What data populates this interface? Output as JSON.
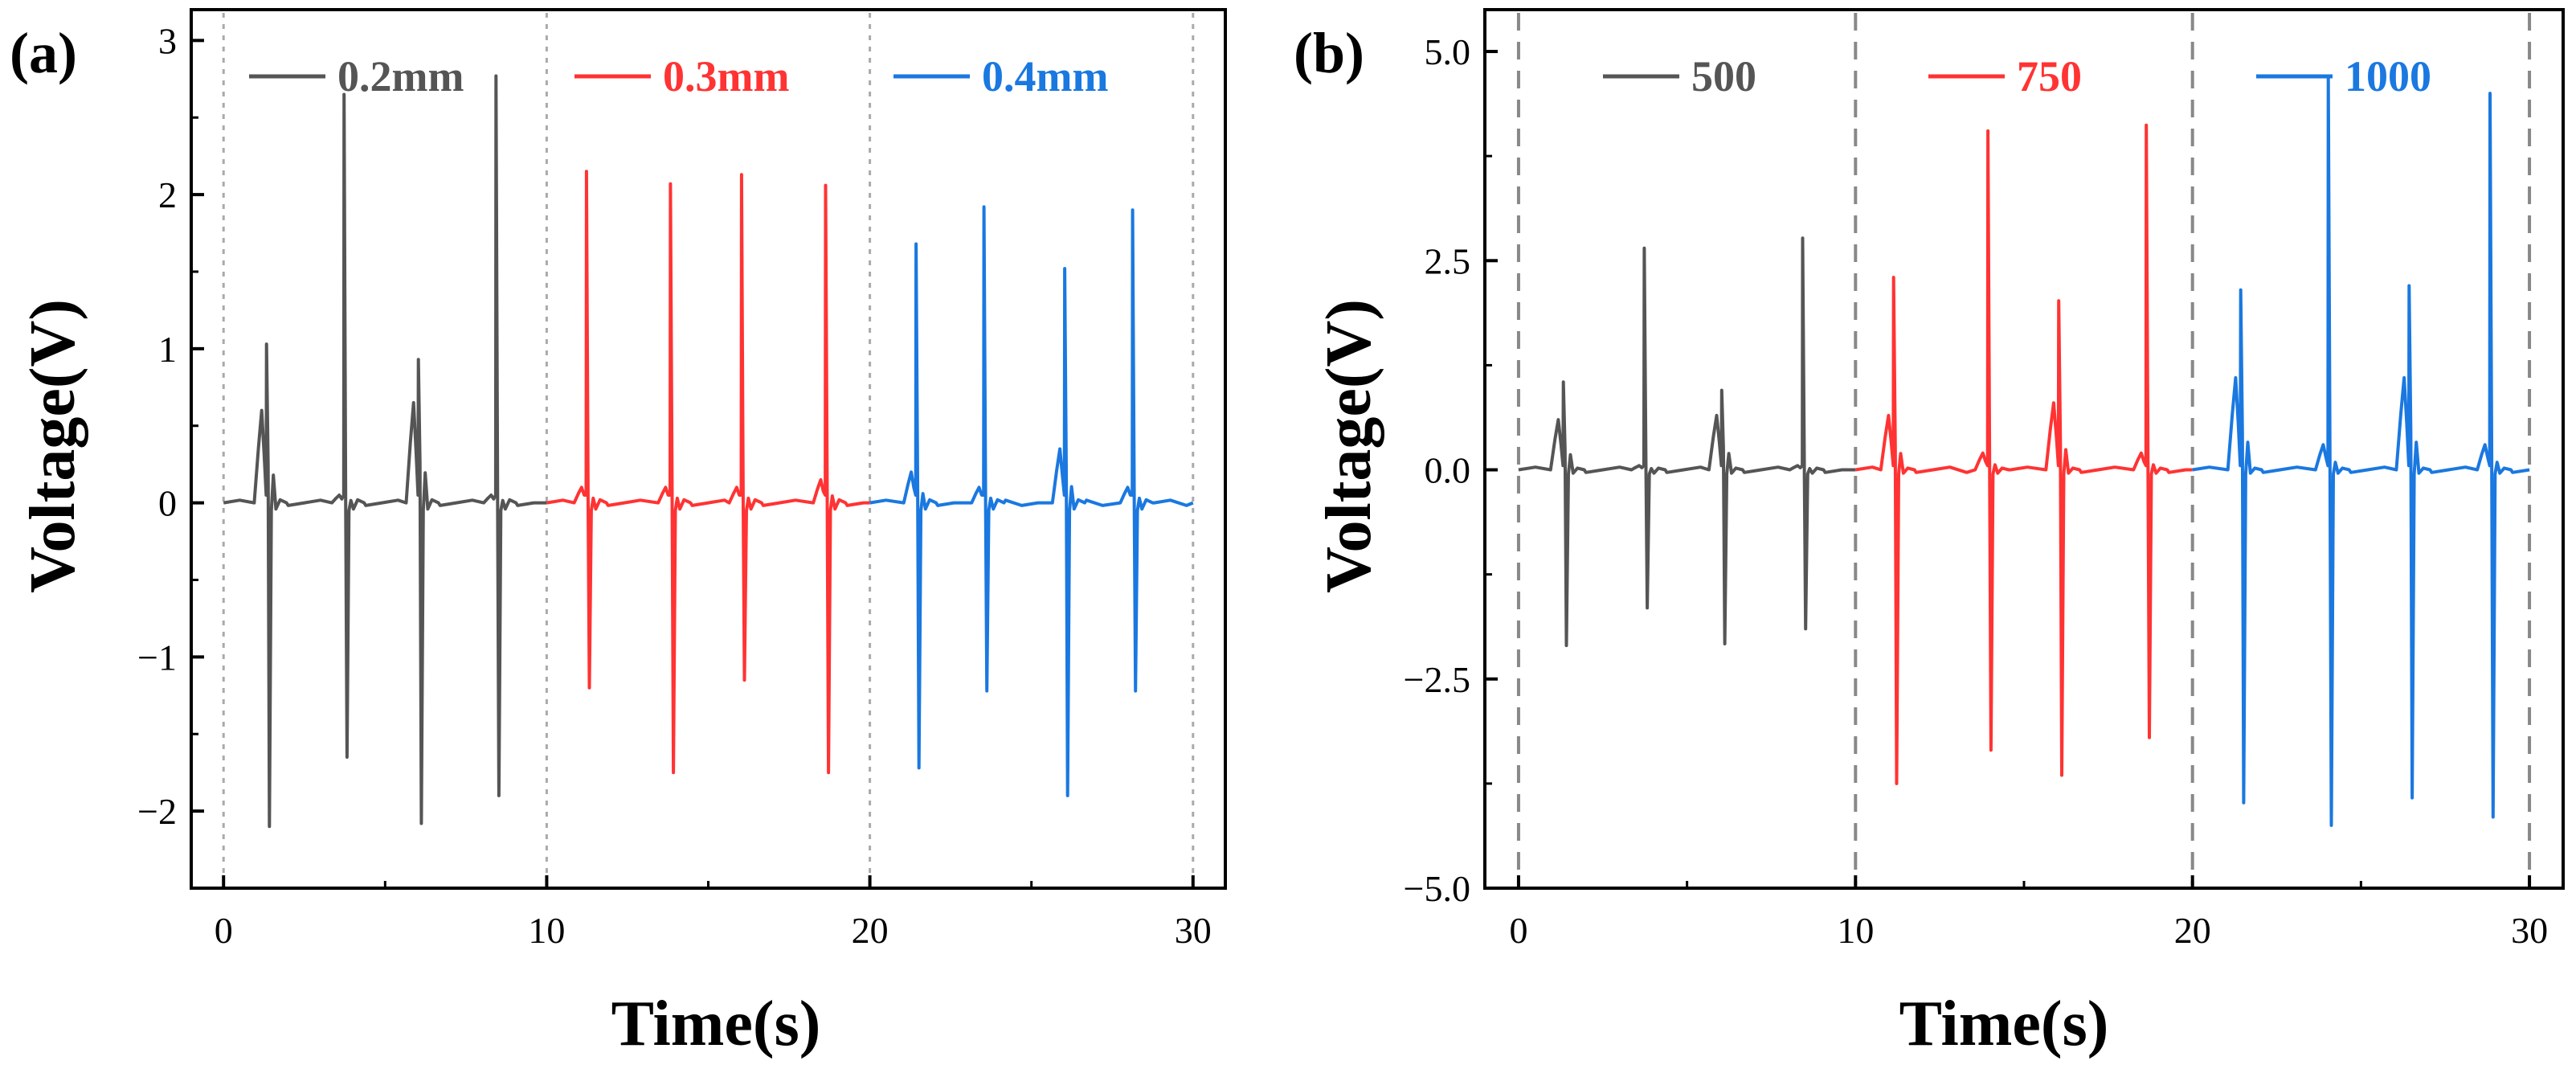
{
  "chart_data": [
    {
      "panel_label": "(a)",
      "type": "line",
      "xlabel": "Time(s)",
      "ylabel": "Voltage(V)",
      "xlim": [
        -1,
        31
      ],
      "ylim": [
        -2.5,
        3.2
      ],
      "xticks": [
        0,
        10,
        20,
        30
      ],
      "xtick_labels": [
        "0",
        "10",
        "20",
        "30"
      ],
      "yticks": [
        -2,
        -1,
        0,
        1,
        2,
        3
      ],
      "ytick_labels": [
        "−2",
        "−1",
        "0",
        "1",
        "2",
        "3"
      ],
      "vlines": [
        0,
        10,
        20,
        30
      ],
      "legend_position": "top",
      "series": [
        {
          "name": "0.2mm",
          "color": "#555555",
          "x_range": [
            0,
            10
          ],
          "pulses": [
            {
              "t": 1.4,
              "max": 1.03,
              "min": -2.1,
              "shoulder": 0.6
            },
            {
              "t": 3.8,
              "max": 2.65,
              "min": -1.65,
              "shoulder": 0.05
            },
            {
              "t": 6.1,
              "max": 0.93,
              "min": -2.08,
              "shoulder": 0.65
            },
            {
              "t": 8.5,
              "max": 2.77,
              "min": -1.9,
              "shoulder": 0.05
            }
          ]
        },
        {
          "name": "0.3mm",
          "color": "#ff3333",
          "x_range": [
            10,
            20
          ],
          "pulses": [
            {
              "t": 11.3,
              "max": 2.15,
              "min": -1.2,
              "shoulder": 0.1
            },
            {
              "t": 13.9,
              "max": 2.07,
              "min": -1.75,
              "shoulder": 0.1
            },
            {
              "t": 16.1,
              "max": 2.13,
              "min": -1.15,
              "shoulder": 0.1
            },
            {
              "t": 18.7,
              "max": 2.06,
              "min": -1.75,
              "shoulder": 0.15
            }
          ]
        },
        {
          "name": "0.4mm",
          "color": "#1a78e0",
          "x_range": [
            20,
            30
          ],
          "pulses": [
            {
              "t": 21.5,
              "max": 1.68,
              "min": -1.72,
              "shoulder": 0.2
            },
            {
              "t": 23.6,
              "max": 1.92,
              "min": -1.22,
              "shoulder": 0.1
            },
            {
              "t": 26.1,
              "max": 1.52,
              "min": -1.9,
              "shoulder": 0.35
            },
            {
              "t": 28.2,
              "max": 1.9,
              "min": -1.22,
              "shoulder": 0.1
            }
          ]
        }
      ]
    },
    {
      "panel_label": "(b)",
      "type": "line",
      "xlabel": "Time(s)",
      "ylabel": "Voltage(V)",
      "xlim": [
        -1,
        31
      ],
      "ylim": [
        -5.0,
        5.5
      ],
      "xticks": [
        0,
        10,
        20,
        30
      ],
      "xtick_labels": [
        "0",
        "10",
        "20",
        "30"
      ],
      "yticks": [
        -5.0,
        -2.5,
        0.0,
        2.5,
        5.0
      ],
      "ytick_labels": [
        "−5.0",
        "−2.5",
        "0.0",
        "2.5",
        "5.0"
      ],
      "vlines": [
        0,
        10,
        20,
        30
      ],
      "legend_position": "top",
      "series": [
        {
          "name": "500",
          "color": "#555555",
          "x_range": [
            0,
            10
          ],
          "pulses": [
            {
              "t": 1.4,
              "max": 1.05,
              "min": -2.1,
              "shoulder": 0.6
            },
            {
              "t": 3.8,
              "max": 2.65,
              "min": -1.65,
              "shoulder": 0.05
            },
            {
              "t": 6.1,
              "max": 0.95,
              "min": -2.08,
              "shoulder": 0.65
            },
            {
              "t": 8.5,
              "max": 2.77,
              "min": -1.9,
              "shoulder": 0.05
            }
          ]
        },
        {
          "name": "750",
          "color": "#ff3333",
          "x_range": [
            10,
            20
          ],
          "pulses": [
            {
              "t": 11.2,
              "max": 2.3,
              "min": -3.75,
              "shoulder": 0.65
            },
            {
              "t": 14.0,
              "max": 4.05,
              "min": -3.35,
              "shoulder": 0.2
            },
            {
              "t": 16.1,
              "max": 2.02,
              "min": -3.65,
              "shoulder": 0.8
            },
            {
              "t": 18.7,
              "max": 4.12,
              "min": -3.2,
              "shoulder": 0.2
            }
          ]
        },
        {
          "name": "1000",
          "color": "#1a78e0",
          "x_range": [
            20,
            30
          ],
          "pulses": [
            {
              "t": 21.5,
              "max": 2.15,
              "min": -3.98,
              "shoulder": 1.1
            },
            {
              "t": 24.1,
              "max": 4.7,
              "min": -4.25,
              "shoulder": 0.3
            },
            {
              "t": 26.5,
              "max": 2.2,
              "min": -3.92,
              "shoulder": 1.1
            },
            {
              "t": 28.9,
              "max": 4.5,
              "min": -4.15,
              "shoulder": 0.3
            }
          ]
        }
      ]
    }
  ]
}
